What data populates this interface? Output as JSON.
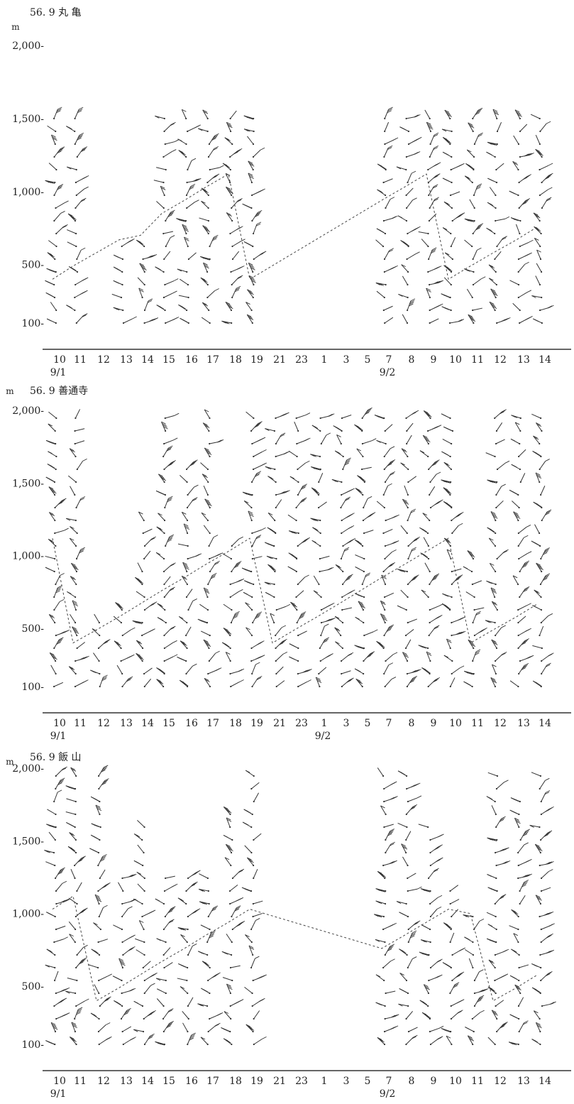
{
  "chart_data": [
    {
      "type": "wind-barb-time-height",
      "title": "56. 9  丸  亀",
      "unit": "m",
      "ylabel_ticks": [
        "2,000-",
        "1,500-",
        "1,000-",
        "500-",
        "100-"
      ],
      "ylim": [
        0,
        2000
      ],
      "yticks": [
        2000,
        1500,
        1000,
        500,
        100
      ],
      "x_tick_labels": [
        "10",
        "11",
        "12",
        "13",
        "14",
        "15",
        "16",
        "17",
        "18",
        "19",
        "21",
        "23",
        "1",
        "3",
        "5",
        "7",
        "8",
        "9",
        "10",
        "11",
        "12",
        "13",
        "14"
      ],
      "date_labels": [
        {
          "text": "9/1",
          "at_tick": 0
        },
        {
          "text": "9/2",
          "at_tick": 15
        }
      ],
      "observed_columns": [
        0,
        1,
        3,
        4,
        5,
        6,
        7,
        8,
        9,
        15,
        16,
        17,
        18,
        19,
        20,
        21,
        22
      ],
      "column_top_m": [
        1500,
        1500,
        0,
        700,
        700,
        1500,
        1500,
        1500,
        1500,
        1500,
        0,
        0,
        0,
        0,
        0,
        1500,
        1500,
        1500,
        1500,
        1500,
        1500,
        1500,
        1500
      ],
      "column_bottom_m": [
        100,
        100,
        0,
        100,
        100,
        100,
        100,
        100,
        100,
        100,
        0,
        0,
        0,
        0,
        0,
        100,
        100,
        100,
        100,
        100,
        100,
        100,
        100
      ]
    },
    {
      "type": "wind-barb-time-height",
      "title": "56. 9  善通寺",
      "unit": "m",
      "ylabel_ticks": [
        "2,000-",
        "1,500-",
        "1,000-",
        "500-",
        "100-"
      ],
      "ylim": [
        0,
        2000
      ],
      "yticks": [
        2000,
        1500,
        1000,
        500,
        100
      ],
      "x_tick_labels": [
        "10",
        "11",
        "12",
        "13",
        "14",
        "15",
        "16",
        "17",
        "18",
        "19",
        "21",
        "23",
        "1",
        "3",
        "5",
        "7",
        "8",
        "9",
        "10",
        "11",
        "12",
        "13",
        "14"
      ],
      "date_labels": [
        {
          "text": "9/1",
          "at_tick": 0
        },
        {
          "text": "9/2",
          "at_tick": 12
        }
      ],
      "observed_columns": [
        0,
        1,
        2,
        3,
        4,
        5,
        6,
        7,
        8,
        9,
        10,
        11,
        12,
        13,
        14,
        15,
        16,
        17,
        18,
        19,
        20,
        21,
        22
      ],
      "column_top_m": [
        2000,
        2000,
        600,
        700,
        1300,
        2000,
        1600,
        2000,
        1100,
        2000,
        2000,
        2000,
        2000,
        2000,
        2000,
        2000,
        2000,
        2000,
        2000,
        1000,
        2000,
        2000,
        2000
      ],
      "column_bottom_m": [
        100,
        100,
        100,
        100,
        100,
        100,
        100,
        100,
        100,
        100,
        100,
        100,
        100,
        100,
        100,
        100,
        100,
        100,
        100,
        100,
        100,
        100,
        100
      ]
    },
    {
      "type": "wind-barb-time-height",
      "title": "56. 9  飯  山",
      "unit": "m",
      "ylabel_ticks": [
        "2,000-",
        "1,500-",
        "1,000-",
        "500-",
        "100-"
      ],
      "ylim": [
        0,
        2000
      ],
      "yticks": [
        2000,
        1500,
        1000,
        500,
        100
      ],
      "x_tick_labels": [
        "10",
        "11",
        "12",
        "13",
        "14",
        "15",
        "16",
        "17",
        "18",
        "19",
        "21",
        "23",
        "1",
        "3",
        "5",
        "7",
        "8",
        "9",
        "10",
        "11",
        "12",
        "13",
        "14"
      ],
      "date_labels": [
        {
          "text": "9/1",
          "at_tick": 0
        },
        {
          "text": "9/2",
          "at_tick": 15
        }
      ],
      "observed_columns": [
        0,
        1,
        2,
        3,
        4,
        5,
        6,
        7,
        8,
        9,
        15,
        16,
        17,
        18,
        19,
        20,
        21,
        22
      ],
      "column_top_m": [
        2000,
        2000,
        2000,
        1300,
        1600,
        1300,
        1300,
        1300,
        1700,
        2000,
        0,
        0,
        0,
        0,
        0,
        2000,
        2000,
        1600,
        1200,
        1000,
        2000,
        1800,
        2000
      ],
      "column_bottom_m": [
        100,
        100,
        100,
        100,
        100,
        100,
        100,
        100,
        100,
        100,
        0,
        0,
        0,
        0,
        0,
        100,
        100,
        100,
        100,
        100,
        100,
        100,
        100
      ]
    }
  ]
}
